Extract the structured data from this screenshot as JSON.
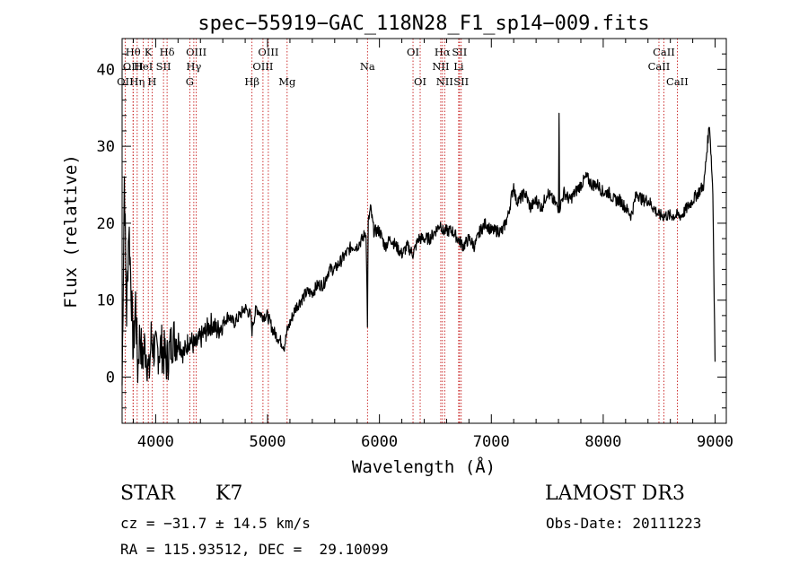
{
  "chart_data": {
    "type": "line",
    "title": "spec−55919−GAC_118N28_F1_sp14−009.fits",
    "xlabel": "Wavelength (Å)",
    "ylabel": "Flux (relative)",
    "xlim": [
      3700,
      9100
    ],
    "ylim": [
      -6,
      44
    ],
    "xticks": [
      4000,
      5000,
      6000,
      7000,
      8000,
      9000
    ],
    "yticks": [
      0,
      10,
      20,
      30,
      40
    ],
    "series": [
      {
        "name": "spectrum",
        "x": [
          3700,
          3720,
          3740,
          3760,
          3780,
          3800,
          3820,
          3840,
          3860,
          3880,
          3900,
          3920,
          3940,
          3960,
          3980,
          4000,
          4050,
          4100,
          4150,
          4200,
          4250,
          4300,
          4350,
          4400,
          4450,
          4500,
          4550,
          4600,
          4650,
          4700,
          4750,
          4800,
          4850,
          4861,
          4870,
          4900,
          4950,
          5000,
          5050,
          5100,
          5150,
          5175,
          5200,
          5250,
          5300,
          5350,
          5400,
          5450,
          5500,
          5550,
          5600,
          5650,
          5700,
          5750,
          5800,
          5850,
          5880,
          5893,
          5900,
          5920,
          5950,
          6000,
          6050,
          6100,
          6150,
          6200,
          6250,
          6300,
          6350,
          6400,
          6450,
          6500,
          6550,
          6563,
          6600,
          6650,
          6700,
          6750,
          6800,
          6850,
          6900,
          6950,
          7000,
          7050,
          7100,
          7150,
          7200,
          7220,
          7250,
          7300,
          7350,
          7400,
          7450,
          7500,
          7550,
          7600,
          7605,
          7610,
          7650,
          7700,
          7750,
          7800,
          7850,
          7900,
          7950,
          8000,
          8050,
          8100,
          8150,
          8200,
          8250,
          8300,
          8350,
          8400,
          8450,
          8498,
          8542,
          8600,
          8662,
          8700,
          8750,
          8800,
          8850,
          8900,
          8930,
          8950,
          8980,
          9000
        ],
        "y": [
          -1,
          26,
          8,
          20,
          12,
          3,
          10,
          1,
          6,
          2,
          4,
          3,
          0,
          5,
          4,
          3,
          4,
          2,
          5,
          5,
          3,
          5,
          4,
          5,
          6,
          7,
          6,
          7,
          8,
          7,
          8,
          9,
          8,
          6,
          7,
          9,
          8,
          8,
          6,
          5,
          4,
          6,
          7,
          9,
          10,
          11,
          11,
          12,
          12,
          14,
          14,
          15,
          16,
          17,
          17,
          18,
          19,
          7,
          20,
          22,
          19,
          19,
          17,
          18,
          17,
          16,
          17,
          16,
          18,
          18,
          18,
          19,
          20,
          19,
          19,
          19,
          18,
          17,
          18,
          17,
          19,
          20,
          19,
          19,
          19,
          21,
          25,
          23,
          23,
          24,
          22,
          23,
          22,
          24,
          23,
          22,
          35,
          22,
          24,
          23,
          24,
          25,
          26,
          25,
          25,
          24,
          24,
          23,
          23,
          22,
          21,
          24,
          23,
          23,
          22,
          21,
          21,
          21,
          21,
          21,
          22,
          23,
          24,
          25,
          30,
          33,
          24,
          2
        ]
      }
    ],
    "line_markers": [
      {
        "label": "OII",
        "wavelength": 3727,
        "row": 3
      },
      {
        "label": "Hθ",
        "wavelength": 3798,
        "row": 1
      },
      {
        "label": "OIII",
        "wavelength": 3799,
        "row": 2
      },
      {
        "label": "Hη",
        "wavelength": 3835,
        "row": 3
      },
      {
        "label": "K",
        "wavelength": 3934,
        "row": 1
      },
      {
        "label": "HeI",
        "wavelength": 3889,
        "row": 2
      },
      {
        "label": "H",
        "wavelength": 3968,
        "row": 3
      },
      {
        "label": "SII",
        "wavelength": 4070,
        "row": 2
      },
      {
        "label": "Hδ",
        "wavelength": 4102,
        "row": 1
      },
      {
        "label": "OIII",
        "wavelength": 4363,
        "row": 1
      },
      {
        "label": "Hγ",
        "wavelength": 4341,
        "row": 2
      },
      {
        "label": "G",
        "wavelength": 4305,
        "row": 3
      },
      {
        "label": "Hβ",
        "wavelength": 4861,
        "row": 3
      },
      {
        "label": "OIII",
        "wavelength": 5007,
        "row": 1
      },
      {
        "label": "OIII",
        "wavelength": 4959,
        "row": 2
      },
      {
        "label": "Mg",
        "wavelength": 5175,
        "row": 3
      },
      {
        "label": "Na",
        "wavelength": 5893,
        "row": 2
      },
      {
        "label": "OI",
        "wavelength": 6300,
        "row": 1
      },
      {
        "label": "OI",
        "wavelength": 6364,
        "row": 3
      },
      {
        "label": "Hα",
        "wavelength": 6563,
        "row": 1
      },
      {
        "label": "NII",
        "wavelength": 6548,
        "row": 2
      },
      {
        "label": "NII",
        "wavelength": 6583,
        "row": 3
      },
      {
        "label": "SII",
        "wavelength": 6716,
        "row": 1
      },
      {
        "label": "Li",
        "wavelength": 6708,
        "row": 2
      },
      {
        "label": "SII",
        "wavelength": 6731,
        "row": 3
      },
      {
        "label": "CaII",
        "wavelength": 8542,
        "row": 1
      },
      {
        "label": "CaII",
        "wavelength": 8498,
        "row": 2
      },
      {
        "label": "CaII",
        "wavelength": 8662,
        "row": 3
      }
    ]
  },
  "info": {
    "class": "STAR",
    "subclass": "K7",
    "survey": "LAMOST DR3",
    "velocity": "cz = −31.7 ± 14.5 km/s",
    "obs_date": "Obs-Date: 20111223",
    "coords": "RA = 115.93512, DEC =  29.10099"
  },
  "colors": {
    "line": "#000000",
    "marker": "#c00000"
  }
}
